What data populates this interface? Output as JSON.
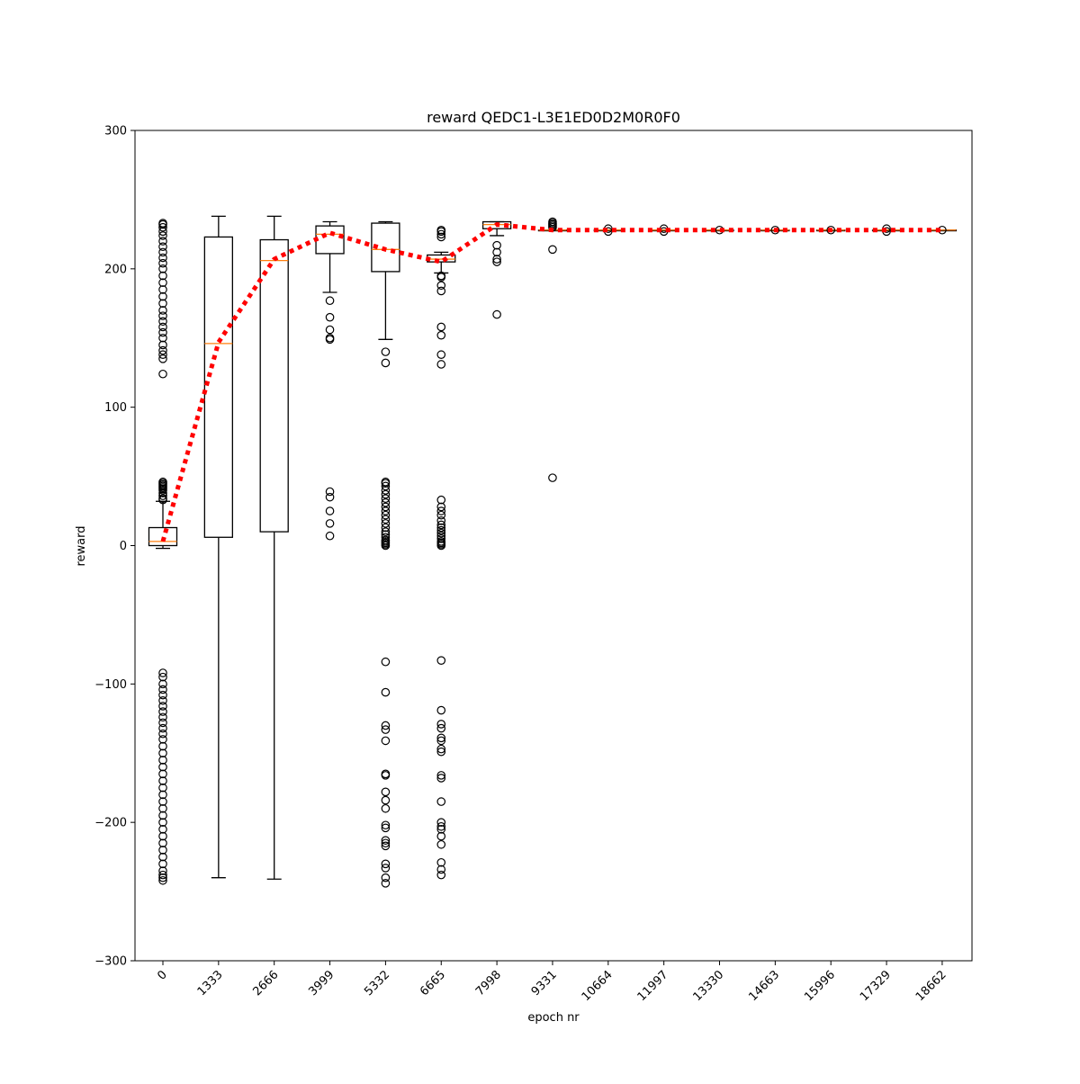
{
  "chart_data": {
    "type": "box",
    "title": "reward QEDC1-L3E1ED0D2M0R0F0",
    "xlabel": "epoch nr",
    "ylabel": "reward",
    "ylim": [
      -300,
      300
    ],
    "yticks": [
      -300,
      -200,
      -100,
      0,
      100,
      200,
      300
    ],
    "ytick_labels": [
      "−300",
      "−200",
      "−100",
      "0",
      "100",
      "200",
      "300"
    ],
    "categories": [
      "0",
      "1333",
      "2666",
      "3999",
      "5332",
      "6665",
      "7998",
      "9331",
      "10664",
      "11997",
      "13330",
      "14663",
      "15996",
      "17329",
      "18662"
    ],
    "grid": false,
    "mean_line": {
      "style": "dotted",
      "color": "#ff0000",
      "values": [
        3,
        147,
        207,
        226,
        214,
        205,
        232,
        228,
        228,
        228,
        228,
        228,
        228,
        228,
        228
      ]
    },
    "boxes": [
      {
        "q1": 0,
        "median": 3,
        "q3": 13,
        "whisker_low": -2,
        "whisker_high": 32,
        "outliers": [
          33,
          34,
          36,
          38,
          40,
          41,
          42,
          43,
          44,
          45,
          46,
          124,
          135,
          138,
          141,
          145,
          150,
          154,
          158,
          162,
          166,
          170,
          175,
          180,
          185,
          190,
          195,
          200,
          204,
          208,
          212,
          216,
          220,
          224,
          227,
          230,
          232,
          233,
          -92,
          -95,
          -100,
          -104,
          -108,
          -112,
          -116,
          -120,
          -124,
          -128,
          -132,
          -136,
          -140,
          -145,
          -150,
          -155,
          -160,
          -165,
          -170,
          -175,
          -180,
          -185,
          -190,
          -195,
          -200,
          -205,
          -210,
          -215,
          -220,
          -225,
          -230,
          -235,
          -238,
          -240,
          -242
        ]
      },
      {
        "q1": 6,
        "median": 146,
        "q3": 223,
        "whisker_low": -240,
        "whisker_high": 238,
        "outliers": []
      },
      {
        "q1": 10,
        "median": 206,
        "q3": 221,
        "whisker_low": -241,
        "whisker_high": 238,
        "outliers": []
      },
      {
        "q1": 211,
        "median": 225,
        "q3": 231,
        "whisker_low": 183,
        "whisker_high": 234,
        "outliers": [
          177,
          165,
          156,
          150,
          149,
          39,
          35,
          25,
          16,
          7
        ]
      },
      {
        "q1": 198,
        "median": 214,
        "q3": 233,
        "whisker_low": 149,
        "whisker_high": 234,
        "outliers": [
          140,
          132,
          46,
          45,
          43,
          40,
          37,
          34,
          31,
          28,
          25,
          22,
          19,
          16,
          13,
          10,
          8,
          6,
          4,
          3,
          2,
          1,
          0,
          -84,
          -106,
          -130,
          -133,
          -141,
          -165,
          -166,
          -178,
          -184,
          -190,
          -202,
          -204,
          -213,
          -215,
          -217,
          -230,
          -233,
          -240,
          -244
        ]
      },
      {
        "q1": 205,
        "median": 207,
        "q3": 210,
        "whisker_low": 197,
        "whisker_high": 212,
        "outliers": [
          228,
          227,
          225,
          223,
          195,
          194,
          188,
          184,
          158,
          152,
          138,
          131,
          33,
          28,
          25,
          22,
          18,
          15,
          13,
          11,
          9,
          7,
          5,
          3,
          2,
          1,
          0,
          -83,
          -119,
          -129,
          -132,
          -139,
          -141,
          -147,
          -149,
          -166,
          -168,
          -185,
          -200,
          -203,
          -205,
          -210,
          -216,
          -229,
          -234,
          -238
        ]
      },
      {
        "q1": 229,
        "median": 232,
        "q3": 234,
        "whisker_low": 224,
        "whisker_high": 234,
        "outliers": [
          217,
          212,
          207,
          205,
          167
        ]
      },
      {
        "q1": 228,
        "median": 228,
        "q3": 228,
        "whisker_low": 228,
        "whisker_high": 228,
        "outliers": [
          234,
          233,
          232,
          231,
          230,
          214,
          49
        ]
      },
      {
        "q1": 228,
        "median": 228,
        "q3": 228,
        "whisker_low": 228,
        "whisker_high": 228,
        "outliers": [
          227,
          229
        ]
      },
      {
        "q1": 228,
        "median": 228,
        "q3": 228,
        "whisker_low": 228,
        "whisker_high": 228,
        "outliers": [
          227,
          229
        ]
      },
      {
        "q1": 228,
        "median": 228,
        "q3": 228,
        "whisker_low": 228,
        "whisker_high": 228,
        "outliers": [
          228
        ]
      },
      {
        "q1": 228,
        "median": 228,
        "q3": 228,
        "whisker_low": 228,
        "whisker_high": 228,
        "outliers": [
          228
        ]
      },
      {
        "q1": 228,
        "median": 228,
        "q3": 228,
        "whisker_low": 228,
        "whisker_high": 228,
        "outliers": [
          228
        ]
      },
      {
        "q1": 228,
        "median": 228,
        "q3": 228,
        "whisker_low": 228,
        "whisker_high": 228,
        "outliers": [
          227,
          229
        ]
      },
      {
        "q1": 228,
        "median": 228,
        "q3": 228,
        "whisker_low": 228,
        "whisker_high": 228,
        "outliers": [
          228
        ]
      }
    ],
    "colors": {
      "box": "#000000",
      "median": "#ff7f0e",
      "mean_line": "#ff0000"
    }
  }
}
